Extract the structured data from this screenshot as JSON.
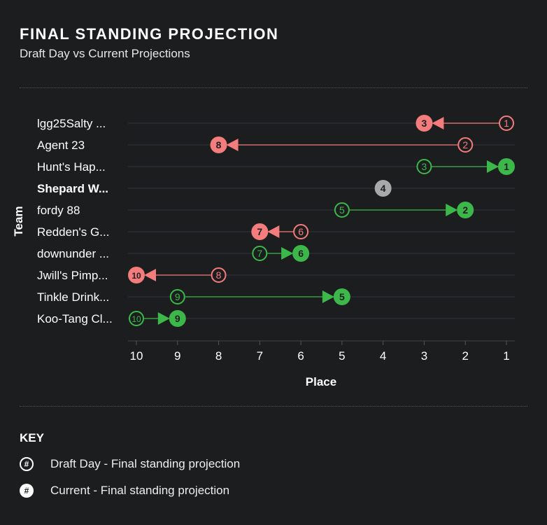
{
  "header": {
    "title": "FINAL STANDING PROJECTION",
    "subtitle": "Draft Day vs Current Projections"
  },
  "colors": {
    "worse": "#f47c7c",
    "better": "#3cb84a",
    "unchanged": "#a9a9a9",
    "background": "#1c1d1f"
  },
  "chart_data": {
    "type": "dumbbell",
    "xlabel": "Place",
    "ylabel": "Team",
    "xlim": [
      10,
      1
    ],
    "xticks": [
      "10",
      "9",
      "8",
      "7",
      "6",
      "5",
      "4",
      "3",
      "2",
      "1"
    ],
    "grid": true,
    "teams": [
      {
        "name": "lgg25Salty ...",
        "draft": 1,
        "current": 3,
        "bold": false
      },
      {
        "name": "Agent 23",
        "draft": 2,
        "current": 8,
        "bold": false
      },
      {
        "name": "Hunt's Hap...",
        "draft": 3,
        "current": 1,
        "bold": false
      },
      {
        "name": "Shepard W...",
        "draft": 4,
        "current": 4,
        "bold": true
      },
      {
        "name": "fordy 88",
        "draft": 5,
        "current": 2,
        "bold": false
      },
      {
        "name": "Redden's G...",
        "draft": 6,
        "current": 7,
        "bold": false
      },
      {
        "name": "downunder ...",
        "draft": 7,
        "current": 6,
        "bold": false
      },
      {
        "name": "Jwill's Pimp...",
        "draft": 8,
        "current": 10,
        "bold": false
      },
      {
        "name": "Tinkle Drink...",
        "draft": 9,
        "current": 5,
        "bold": false
      },
      {
        "name": "Koo-Tang Cl...",
        "draft": 10,
        "current": 9,
        "bold": false
      }
    ]
  },
  "key": {
    "title": "KEY",
    "symbol": "#",
    "items": [
      {
        "label": "Draft Day - Final standing projection",
        "style": "outline"
      },
      {
        "label": "Current - Final standing projection",
        "style": "filled"
      }
    ]
  }
}
